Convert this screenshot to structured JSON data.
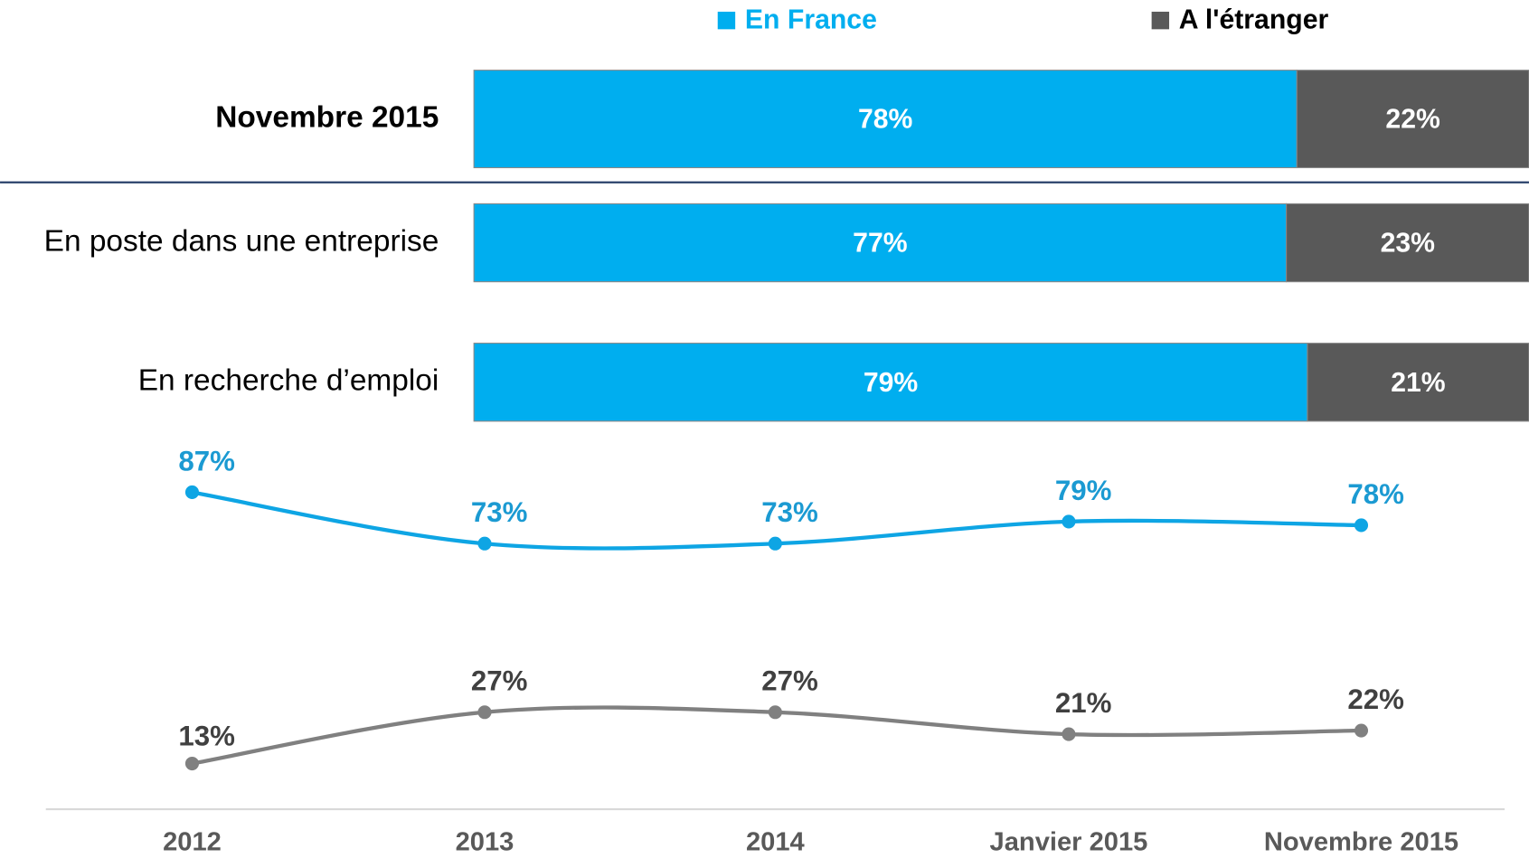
{
  "chart_data": [
    {
      "type": "stacked_bar_h",
      "categories": [
        "Novembre 2015",
        "En poste dans une entreprise",
        "En recherche d’emploi"
      ],
      "series": [
        {
          "name": "En France",
          "color": "#00aeef",
          "values": [
            78,
            77,
            79
          ],
          "value_labels": [
            "78%",
            "77%",
            "79%"
          ]
        },
        {
          "name": "A l'étranger",
          "color": "#595959",
          "values": [
            22,
            23,
            21
          ],
          "value_labels": [
            "22%",
            "23%",
            "21%"
          ]
        }
      ],
      "xlim": [
        0,
        100
      ]
    },
    {
      "type": "line",
      "categories": [
        "2012",
        "2013",
        "2014",
        "Janvier 2015",
        "Novembre 2015"
      ],
      "series": [
        {
          "color": "#0ea5e4",
          "label_color": "#1b9ad2",
          "values": [
            87,
            73,
            73,
            79,
            78
          ],
          "value_labels": [
            "87%",
            "73%",
            "73%",
            "79%",
            "78%"
          ]
        },
        {
          "color": "#808080",
          "label_color": "#404040",
          "values": [
            13,
            27,
            27,
            21,
            22
          ],
          "value_labels": [
            "13%",
            "27%",
            "27%",
            "21%",
            "22%"
          ]
        }
      ],
      "ylim": [
        0,
        100
      ]
    }
  ]
}
